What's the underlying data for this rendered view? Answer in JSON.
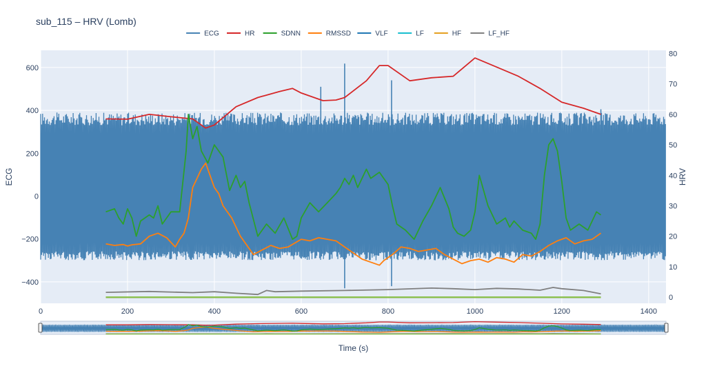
{
  "chart_data": {
    "type": "line",
    "title": "sub_115 – HRV (Lomb)",
    "xlabel": "Time (s)",
    "ylabel_left": "ECG",
    "ylabel_right": "HRV",
    "xlim": [
      0,
      1440
    ],
    "ylim_left": [
      -500,
      680
    ],
    "ylim_right": [
      -2,
      81
    ],
    "x_ticks": [
      0,
      200,
      400,
      600,
      800,
      1000,
      1200,
      1400
    ],
    "y_left_ticks": [
      -400,
      -200,
      0,
      200,
      400,
      600
    ],
    "y_right_ticks": [
      0,
      10,
      20,
      30,
      40,
      50,
      60,
      70,
      80
    ],
    "legend_position": "top-center",
    "range_slider": true,
    "series": [
      {
        "name": "ECG",
        "axis": "left",
        "color": "#4682b4",
        "band_upper": 360,
        "band_lower": -270,
        "spikes": [
          [
            645,
            510,
            -60
          ],
          [
            700,
            618,
            -430
          ],
          [
            808,
            540,
            -420
          ],
          [
            1290,
            405,
            300
          ]
        ]
      },
      {
        "name": "HR",
        "axis": "right",
        "color": "#d62728",
        "x": [
          150,
          200,
          250,
          300,
          350,
          380,
          400,
          450,
          500,
          550,
          580,
          600,
          650,
          680,
          700,
          750,
          780,
          800,
          850,
          900,
          950,
          1000,
          1050,
          1100,
          1150,
          1200,
          1250,
          1290
        ],
        "y": [
          58.5,
          58.4,
          60,
          59.2,
          58.5,
          55.5,
          56.5,
          62.5,
          65.5,
          67.5,
          68.5,
          67,
          64.5,
          64.7,
          65.5,
          71,
          76,
          76,
          71,
          72,
          72.5,
          78.5,
          75.5,
          72.5,
          68.5,
          64,
          62,
          60
        ]
      },
      {
        "name": "SDNN",
        "axis": "right",
        "color": "#2ca02c",
        "x": [
          150,
          170,
          180,
          190,
          200,
          210,
          220,
          230,
          250,
          260,
          270,
          280,
          300,
          320,
          335,
          340,
          350,
          360,
          370,
          385,
          400,
          420,
          435,
          450,
          460,
          470,
          480,
          500,
          510,
          520,
          540,
          560,
          580,
          590,
          600,
          620,
          640,
          660,
          680,
          690,
          700,
          710,
          720,
          730,
          750,
          760,
          780,
          800,
          810,
          820,
          840,
          860,
          880,
          900,
          920,
          940,
          950,
          960,
          975,
          990,
          1000,
          1010,
          1030,
          1050,
          1070,
          1080,
          1090,
          1110,
          1130,
          1140,
          1150,
          1160,
          1170,
          1180,
          1190,
          1200,
          1210,
          1220,
          1240,
          1260,
          1270,
          1280,
          1290
        ],
        "y": [
          28,
          29,
          26,
          24,
          29,
          26,
          20,
          25,
          27,
          26,
          30,
          24,
          28,
          28,
          48,
          60,
          52,
          56,
          48,
          44,
          50,
          46,
          35,
          40,
          36,
          38,
          31,
          20,
          22,
          24,
          21,
          26,
          19,
          20,
          26,
          31,
          28,
          31,
          34,
          36,
          39,
          37,
          40,
          36,
          42,
          39,
          41,
          37,
          30,
          24,
          22,
          19,
          25,
          30,
          36,
          29,
          23,
          21,
          20,
          22,
          28,
          40,
          30,
          24,
          26,
          23,
          25,
          22,
          21,
          19,
          24,
          40,
          50,
          52,
          48,
          38,
          26,
          22,
          24,
          22,
          25,
          28,
          27
        ]
      },
      {
        "name": "RMSSD",
        "axis": "right",
        "color": "#ff7f0e",
        "x": [
          150,
          170,
          190,
          200,
          210,
          230,
          250,
          270,
          290,
          300,
          310,
          320,
          330,
          340,
          350,
          360,
          370,
          380,
          390,
          400,
          410,
          420,
          440,
          460,
          480,
          490,
          510,
          530,
          550,
          570,
          600,
          620,
          640,
          660,
          680,
          700,
          720,
          740,
          760,
          780,
          790,
          810,
          830,
          850,
          870,
          890,
          910,
          930,
          950,
          970,
          990,
          1010,
          1030,
          1050,
          1070,
          1090,
          1110,
          1130,
          1150,
          1170,
          1190,
          1210,
          1230,
          1250,
          1270,
          1290
        ],
        "y": [
          17.5,
          17,
          17.3,
          16.8,
          17.2,
          17.5,
          20,
          21,
          19.5,
          18,
          16.5,
          19,
          21,
          26,
          36,
          39,
          42,
          44,
          40,
          36,
          34,
          30,
          26,
          20,
          16,
          14,
          15.5,
          17,
          16,
          16.5,
          19,
          18.5,
          19.5,
          19,
          18.5,
          16.5,
          14.5,
          12.5,
          11.5,
          10.5,
          12,
          14,
          16.5,
          16,
          15,
          15.5,
          16,
          14,
          12.5,
          11,
          12,
          12.5,
          11.5,
          13,
          12.5,
          11.5,
          14,
          13.5,
          15,
          17,
          18.5,
          19.5,
          17.5,
          18.5,
          19,
          21
        ]
      },
      {
        "name": "VLF",
        "axis": "right",
        "color": "#1f77b4",
        "x": [
          150,
          1290
        ],
        "y": [
          0,
          0
        ]
      },
      {
        "name": "LF",
        "axis": "right",
        "color": "#17becf",
        "x": [
          150,
          1290
        ],
        "y": [
          0,
          0
        ]
      },
      {
        "name": "HF",
        "axis": "right",
        "color": "#e5a020",
        "x": [
          150,
          1290
        ],
        "y": [
          0,
          0
        ]
      },
      {
        "name": "LF_HF",
        "axis": "right",
        "color": "#7f7f7f",
        "x": [
          150,
          250,
          350,
          400,
          450,
          500,
          520,
          540,
          600,
          700,
          800,
          900,
          950,
          1000,
          1050,
          1100,
          1150,
          1180,
          1200,
          1250,
          1290
        ],
        "y": [
          1.6,
          1.9,
          1.5,
          1.8,
          1.3,
          0.9,
          2.2,
          1.8,
          2.0,
          2.2,
          2.5,
          3.0,
          2.8,
          2.5,
          2.9,
          2.7,
          2.3,
          3.2,
          2.8,
          2.2,
          1.1
        ]
      }
    ]
  }
}
